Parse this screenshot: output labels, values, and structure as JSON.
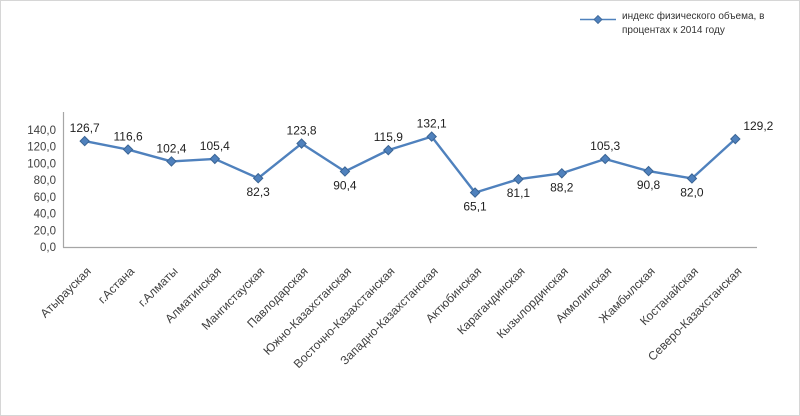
{
  "chart_data": {
    "type": "line",
    "title": "",
    "legend": {
      "position": "top-right",
      "label": "индекс физического объема, в процентах к 2014 году"
    },
    "categories": [
      "Атырауская",
      "г.Астана",
      "г.Алматы",
      "Алматинская",
      "Мангистауская",
      "Павлодарская",
      "Южно-Казахстанская",
      "Восточно-Казахстанская",
      "Западно-Казахстанская",
      "Актюбинская",
      "Карагандинская",
      "Кызылординская",
      "Акмолинская",
      "Жамбылская",
      "Костанайская",
      "Северо-Казахстанская"
    ],
    "series": [
      {
        "name": "индекс физического объема, в процентах к 2014 году",
        "color": "#4F81BD",
        "marker": "diamond",
        "marker_edge_color": "#3A6494",
        "values": [
          126.7,
          116.6,
          102.4,
          105.4,
          82.3,
          123.8,
          90.4,
          115.9,
          132.1,
          65.1,
          81.1,
          88.2,
          105.3,
          90.8,
          82.0,
          129.2
        ]
      }
    ],
    "data_labels": true,
    "decimal_separator": ",",
    "ylim": [
      0,
      140
    ],
    "ytick_step": 20,
    "grid": false,
    "axis_color": "#A6A6A6",
    "tick_label_color": "#3F3F3F",
    "data_label_color": "#1F1F1F",
    "xlabel": "",
    "ylabel": ""
  }
}
